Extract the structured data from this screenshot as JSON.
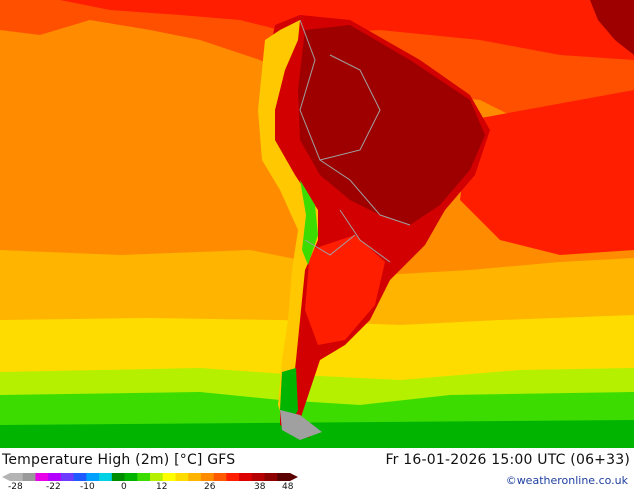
{
  "header": {
    "title": "Temperature High (2m) [°C] GFS",
    "run": "Fr 16-01-2026 15:00 UTC (06+33)"
  },
  "credit": "©weatheronline.co.uk",
  "legend": {
    "ticks": [
      "-28",
      "-22",
      "-10",
      "0",
      "12",
      "26",
      "38",
      "48"
    ],
    "colors": [
      "#b4b4b4",
      "#9a9a9a",
      "#e800e8",
      "#b400ff",
      "#6e3cff",
      "#1e5aff",
      "#00a0ff",
      "#00d2e6",
      "#008c00",
      "#00b400",
      "#3cdc00",
      "#b4f000",
      "#ffff00",
      "#ffdc00",
      "#ffb400",
      "#ff8c00",
      "#ff5a00",
      "#ff1e00",
      "#dc0000",
      "#b40000",
      "#8c0000",
      "#5a0000"
    ]
  },
  "map": {
    "colors": {
      "ocean_warm": "#ff8c00",
      "ocean_hot": "#ff5000",
      "red": "#ff1e00",
      "hot": "#d20000",
      "very_hot": "#9e0000",
      "yellow": "#ffc800",
      "green": "#00b400",
      "light_green": "#3cdc00",
      "borders": "#a0a0a0"
    }
  }
}
